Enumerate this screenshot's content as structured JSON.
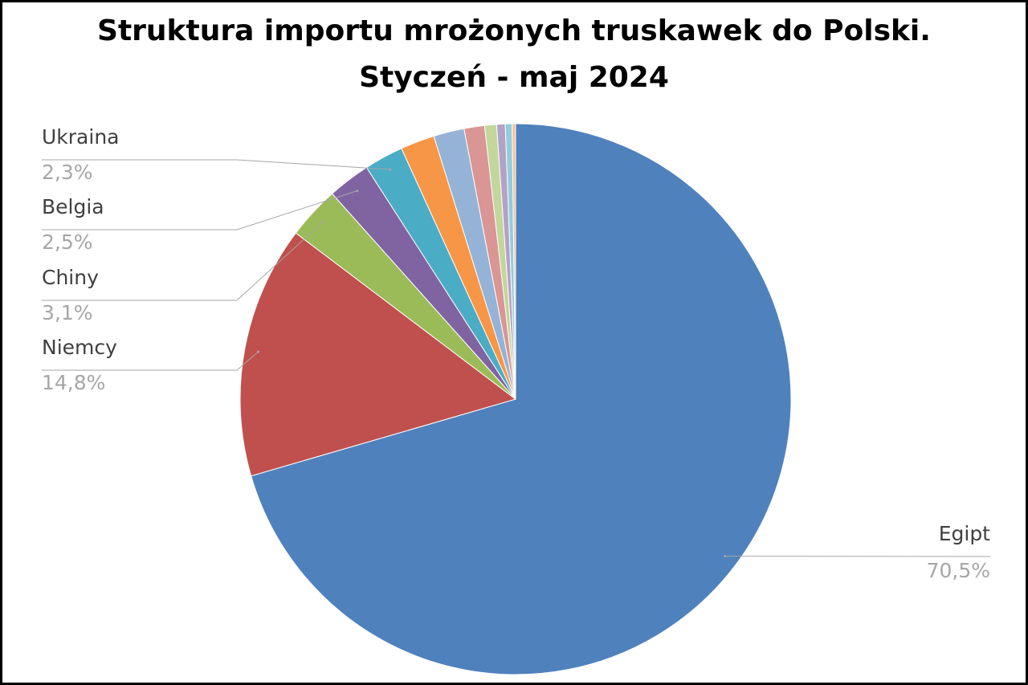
{
  "chart_data": {
    "type": "pie",
    "title": [
      "Struktura importu mrożonych truskawek do Polski.",
      "Styczeń - maj 2024"
    ],
    "categories": [
      "Egipt",
      "Niemcy",
      "Chiny",
      "Belgia",
      "Ukraina",
      null,
      null,
      null,
      null,
      null,
      null,
      null
    ],
    "values": [
      70.5,
      14.8,
      3.1,
      2.5,
      2.3,
      2.0,
      1.8,
      1.2,
      0.7,
      0.5,
      0.4,
      0.2
    ],
    "value_labels": [
      "70,5%",
      "14,8%",
      "3,1%",
      "2,5%",
      "2,3%",
      null,
      null,
      null,
      null,
      null,
      null,
      null
    ],
    "colors": [
      "#4f81bd",
      "#c0504d",
      "#9bbb59",
      "#8064a2",
      "#4bacc6",
      "#f79646",
      "#95b3d7",
      "#d99694",
      "#c3d69b",
      "#b3a2c7",
      "#93cddd",
      "#fac090"
    ]
  }
}
